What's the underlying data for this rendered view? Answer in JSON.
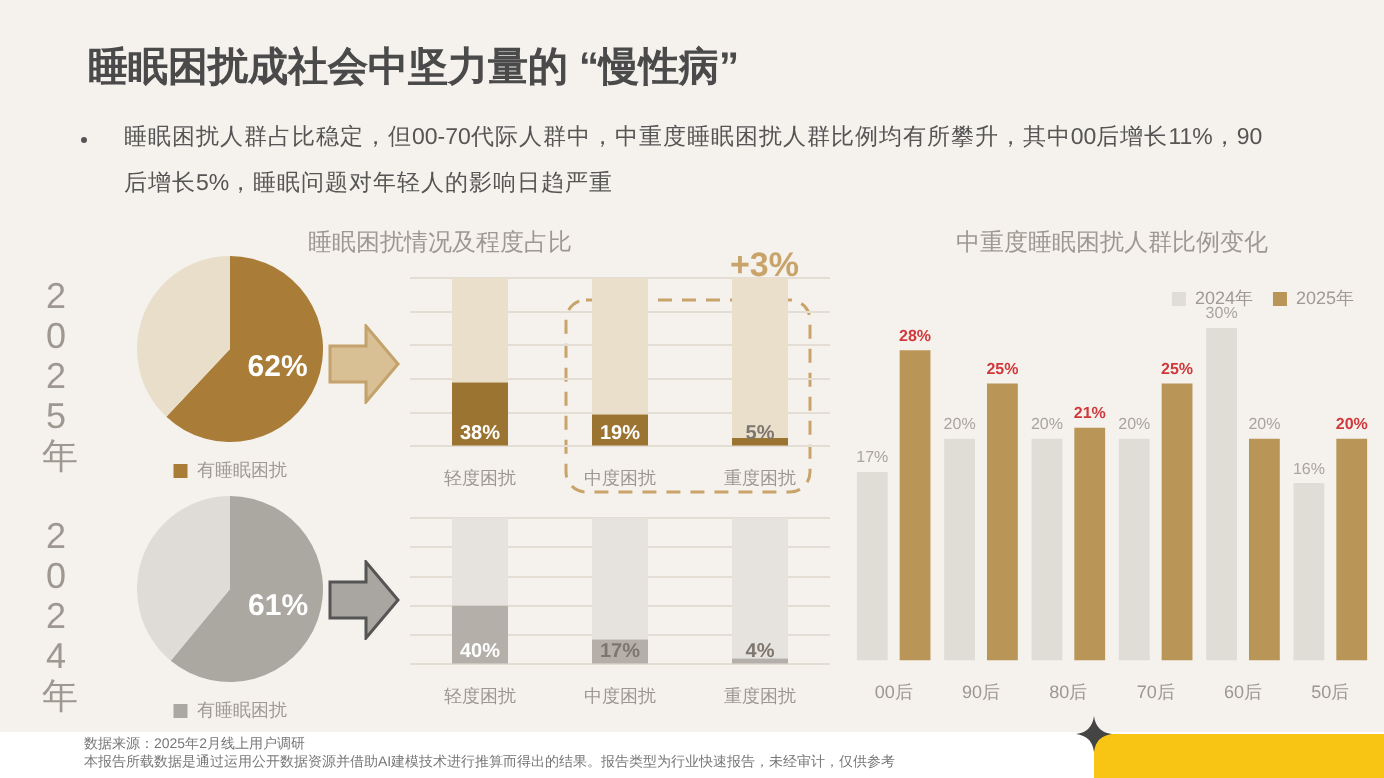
{
  "chart_data": [
    {
      "type": "other",
      "title": "睡眠困扰成社会中坚力量的 “慢性病”",
      "subtitle": "睡眠困扰人群占比稳定，但00-70代际人群中，中重度睡眠困扰人群比例均有所攀升，其中00后增长11%，90后增长5%，睡眠问题对年轻人的影响日趋严重",
      "annotations": [
        "数据来源：2025年2月线上用户调研",
        "本报告所载数据是通过运用公开数据资源并借助AI建模技术进行推算而得出的结果。报告类型为行业快速报告，未经审计，仅供参考"
      ]
    },
    {
      "type": "pie",
      "title": "2025年",
      "categories": [
        "有睡眠困扰",
        null
      ],
      "values": [
        62,
        38
      ],
      "colors": [
        "#a97c38",
        "#e9dec9"
      ],
      "value_labels": [
        "62%",
        null
      ],
      "legend": "bottom"
    },
    {
      "type": "bar",
      "title": "睡眠困扰情况及程度占比",
      "categories": [
        "轻度困扰",
        "中度困扰",
        "重度困扰"
      ],
      "stacked": true,
      "series": [
        {
          "color": "#9c7431",
          "values": [
            38,
            19,
            5
          ],
          "value_labels": [
            "38%",
            "19%",
            "5%"
          ]
        },
        {
          "color": "#eadfcb",
          "values": [
            62,
            81,
            95
          ]
        }
      ],
      "ylim": [
        0,
        100
      ],
      "yticks": [
        {
          "value": 0,
          "label": null
        },
        {
          "value": 20,
          "label": null
        },
        {
          "value": 40,
          "label": null
        },
        {
          "value": 60,
          "label": null
        },
        {
          "value": 80,
          "label": null
        },
        {
          "value": 100,
          "label": null
        }
      ],
      "grid": "y",
      "tick_labels": "x",
      "annotations": [
        "+3%"
      ]
    },
    {
      "type": "pie",
      "title": "2024年",
      "categories": [
        "有睡眠困扰",
        null
      ],
      "values": [
        61,
        39
      ],
      "colors": [
        "#aba7a1",
        "#dfdbd6"
      ],
      "value_labels": [
        "61%",
        null
      ],
      "legend": "bottom"
    },
    {
      "type": "bar",
      "categories": [
        "轻度困扰",
        "中度困扰",
        "重度困扰"
      ],
      "stacked": true,
      "series": [
        {
          "color": "#b4afa9",
          "values": [
            40,
            17,
            4
          ],
          "value_labels": [
            "40%",
            "17%",
            "4%"
          ]
        },
        {
          "color": "#e6e2dd",
          "values": [
            60,
            83,
            96
          ]
        }
      ],
      "ylim": [
        0,
        100
      ],
      "yticks": [
        {
          "value": 0,
          "label": null
        },
        {
          "value": 20,
          "label": null
        },
        {
          "value": 40,
          "label": null
        },
        {
          "value": 60,
          "label": null
        },
        {
          "value": 80,
          "label": null
        },
        {
          "value": 100,
          "label": null
        }
      ],
      "grid": "y",
      "tick_labels": "x"
    },
    {
      "type": "bar",
      "title": "中重度睡眠困扰人群比例变化",
      "categories": [
        "00后",
        "90后",
        "80后",
        "70后",
        "60后",
        "50后"
      ],
      "series": [
        {
          "name": "2024年",
          "color": "#e0dcd6",
          "values": [
            17,
            20,
            20,
            20,
            30,
            16
          ],
          "value_labels": [
            "17%",
            "20%",
            "20%",
            "20%",
            "30%",
            "16%"
          ]
        },
        {
          "name": "2025年",
          "color": "#b99557",
          "values": [
            28,
            25,
            21,
            25,
            20,
            20
          ],
          "value_labels": [
            "28%",
            "25%",
            "21%",
            "25%",
            "20%",
            "20%"
          ]
        }
      ],
      "legend": "top right",
      "tick_labels": "x"
    }
  ]
}
